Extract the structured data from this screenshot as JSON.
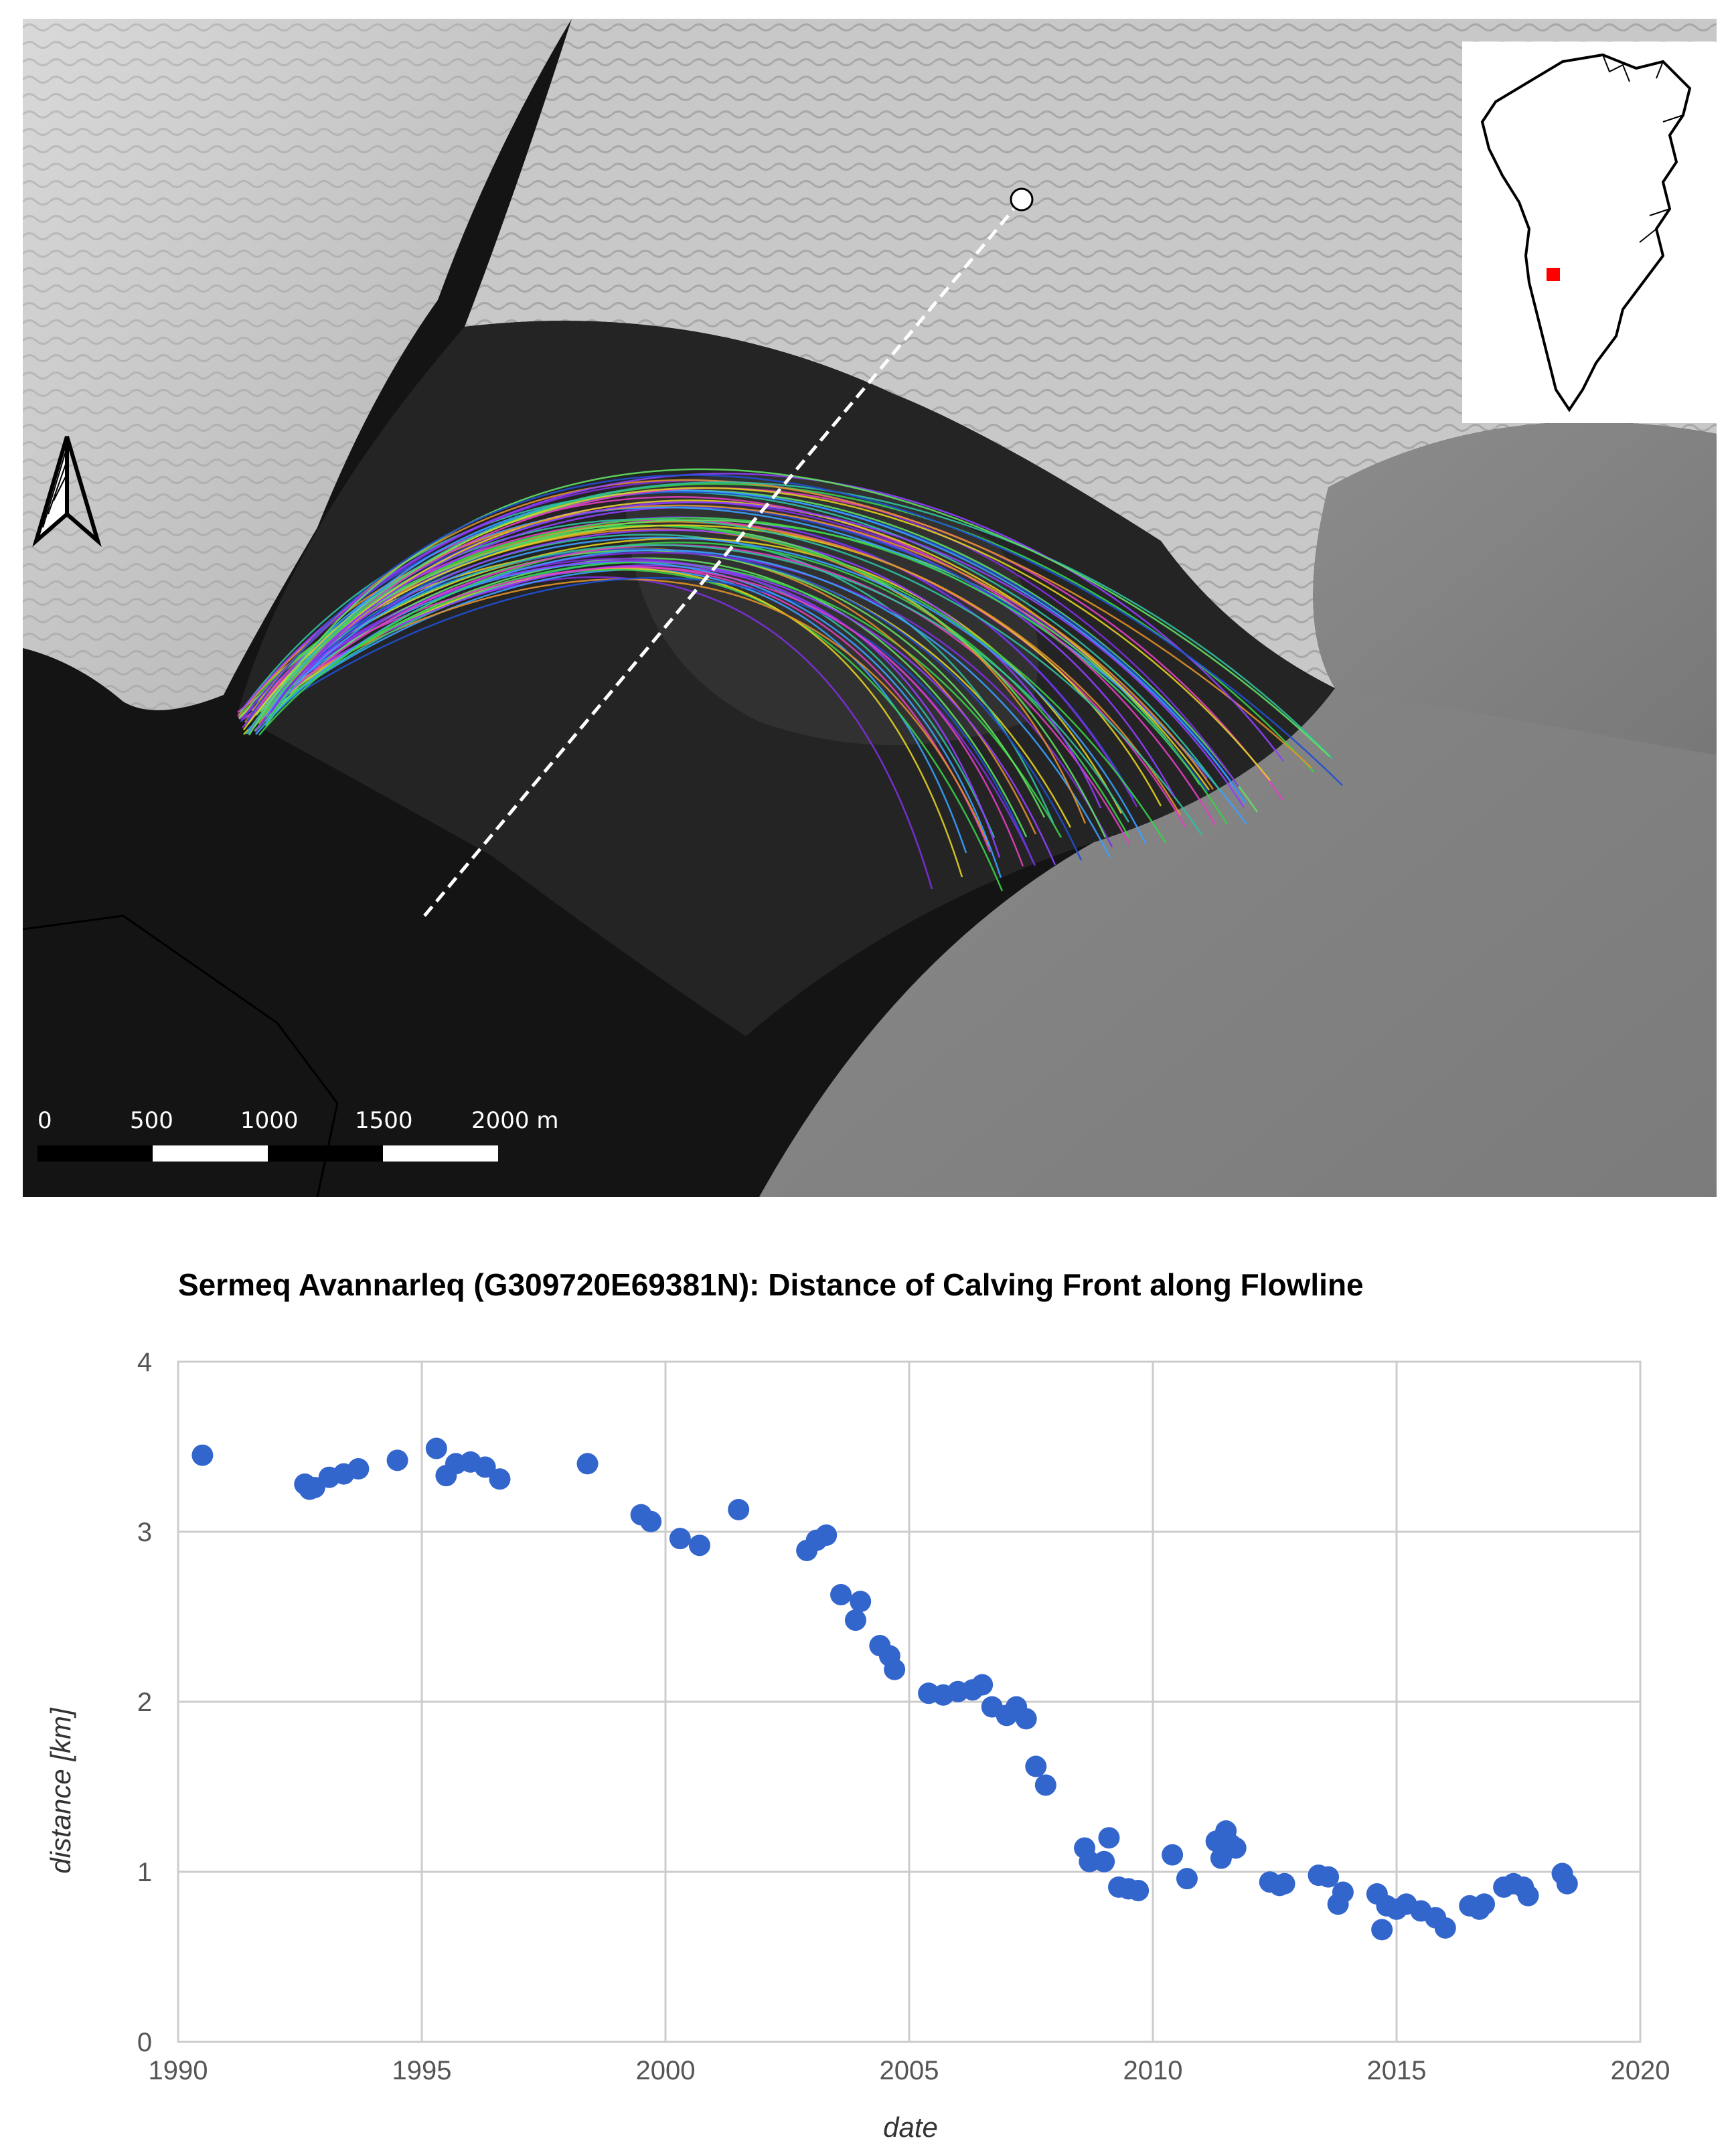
{
  "map": {
    "scale_bar": {
      "labels": [
        "0",
        "500",
        "1000",
        "1500",
        "2000 m"
      ]
    },
    "north_arrow": "north-arrow-icon",
    "colors": {
      "flowline": "#ffffff",
      "inset_marker": "#ff0000"
    },
    "front_line_colors": [
      "#7f2fe0",
      "#3aa0ff",
      "#38d04a",
      "#e040c0",
      "#e0d020",
      "#e0902a",
      "#30c0a0",
      "#9040ff",
      "#60e060",
      "#2050d0"
    ]
  },
  "chart_data": {
    "type": "scatter",
    "title": "Sermeq Avannarleq (G309720E69381N): Distance of Calving Front along Flowline",
    "xlabel": "date",
    "ylabel": "distance [km]",
    "xlim": [
      1990,
      2020
    ],
    "ylim": [
      0,
      4
    ],
    "xticks": [
      "1990",
      "1995",
      "2000",
      "2005",
      "2010",
      "2015",
      "2020"
    ],
    "yticks": [
      "0",
      "1",
      "2",
      "3",
      "4"
    ],
    "grid": true,
    "marker_color": "#3366cc",
    "x": [
      1990.5,
      1992.6,
      1992.7,
      1992.8,
      1993.1,
      1993.4,
      1993.7,
      1994.5,
      1995.3,
      1995.5,
      1995.7,
      1996.0,
      1996.3,
      1996.6,
      1998.4,
      1999.5,
      1999.7,
      2000.3,
      2000.7,
      2001.5,
      2002.9,
      2003.1,
      2003.3,
      2003.6,
      2003.9,
      2004.0,
      2004.4,
      2004.6,
      2004.7,
      2005.4,
      2005.7,
      2006.0,
      2006.3,
      2006.5,
      2006.7,
      2007.0,
      2007.2,
      2007.4,
      2007.6,
      2007.8,
      2008.6,
      2008.7,
      2009.0,
      2009.1,
      2009.3,
      2009.5,
      2009.7,
      2010.4,
      2010.7,
      2011.3,
      2011.4,
      2011.5,
      2011.6,
      2011.7,
      2012.4,
      2012.6,
      2012.7,
      2013.4,
      2013.6,
      2013.8,
      2013.9,
      2014.6,
      2014.7,
      2014.8,
      2015.0,
      2015.2,
      2015.5,
      2015.8,
      2016.0,
      2016.5,
      2016.7,
      2016.8,
      2017.2,
      2017.4,
      2017.6,
      2017.7,
      2018.4,
      2018.5
    ],
    "y": [
      3.45,
      3.28,
      3.25,
      3.26,
      3.32,
      3.34,
      3.37,
      3.42,
      3.49,
      3.33,
      3.4,
      3.41,
      3.38,
      3.31,
      3.4,
      3.1,
      3.06,
      2.96,
      2.92,
      3.13,
      2.89,
      2.95,
      2.98,
      2.63,
      2.48,
      2.59,
      2.33,
      2.27,
      2.19,
      2.05,
      2.04,
      2.06,
      2.07,
      2.1,
      1.97,
      1.92,
      1.97,
      1.9,
      1.62,
      1.51,
      1.14,
      1.06,
      1.06,
      1.2,
      0.91,
      0.9,
      0.89,
      1.1,
      0.96,
      1.18,
      1.08,
      1.24,
      1.16,
      1.14,
      0.94,
      0.92,
      0.93,
      0.98,
      0.97,
      0.81,
      0.88,
      0.87,
      0.66,
      0.8,
      0.78,
      0.81,
      0.77,
      0.73,
      0.67,
      0.8,
      0.78,
      0.81,
      0.91,
      0.93,
      0.91,
      0.86,
      0.99,
      0.93
    ]
  }
}
